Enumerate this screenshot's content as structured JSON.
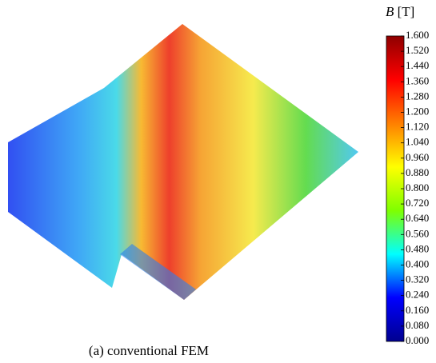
{
  "chart_data": {
    "type": "vector-field",
    "caption": "(a) conventional FEM",
    "colorbar_symbol": "B",
    "colorbar_unit": "[T]",
    "colormap": "jet",
    "clim": [
      0,
      1.6
    ],
    "cticks": [
      {
        "value": 0,
        "label": "0.000"
      },
      {
        "value": 0.08,
        "label": "0.080"
      },
      {
        "value": 0.16,
        "label": "0.160"
      },
      {
        "value": 0.24,
        "label": "0.240"
      },
      {
        "value": 0.32,
        "label": "0.320"
      },
      {
        "value": 0.4,
        "label": "0.400"
      },
      {
        "value": 0.48,
        "label": "0.480"
      },
      {
        "value": 0.56,
        "label": "0.560"
      },
      {
        "value": 0.64,
        "label": "0.640"
      },
      {
        "value": 0.72,
        "label": "0.720"
      },
      {
        "value": 0.8,
        "label": "0.800"
      },
      {
        "value": 0.88,
        "label": "0.880"
      },
      {
        "value": 0.96,
        "label": "0.960"
      },
      {
        "value": 1.04,
        "label": "1.040"
      },
      {
        "value": 1.12,
        "label": "1.120"
      },
      {
        "value": 1.2,
        "label": "1.200"
      },
      {
        "value": 1.28,
        "label": "1.280"
      },
      {
        "value": 1.36,
        "label": "1.360"
      },
      {
        "value": 1.44,
        "label": "1.440"
      },
      {
        "value": 1.52,
        "label": "1.520"
      },
      {
        "value": 1.6,
        "label": "1.600"
      }
    ]
  }
}
